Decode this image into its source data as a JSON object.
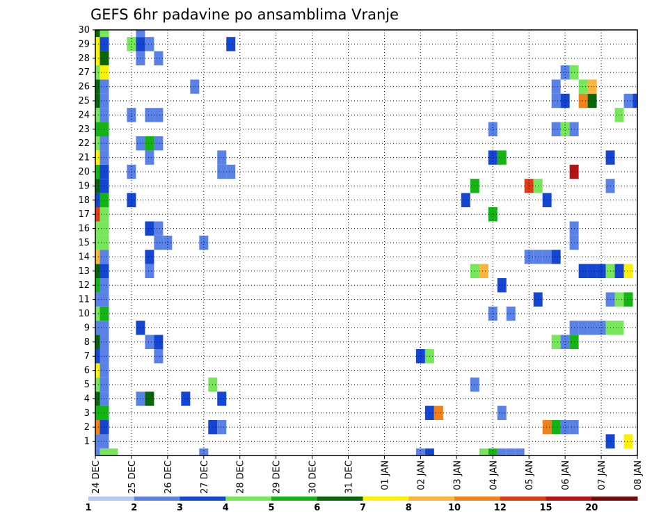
{
  "chart_data": {
    "type": "heatmap",
    "title": "GEFS 6hr padavine po ansamblima Vranje",
    "xlabel": "",
    "ylabel": "",
    "x_tick_labels": [
      "24 DEC",
      "25 DEC",
      "26 DEC",
      "27 DEC",
      "28 DEC",
      "29 DEC",
      "30 DEC",
      "31 DEC",
      "01 JAN",
      "02 JAN",
      "03 JAN",
      "04 JAN",
      "05 JAN",
      "06 JAN",
      "07 JAN",
      "08 JAN"
    ],
    "y_tick_labels": [
      "1",
      "2",
      "3",
      "4",
      "5",
      "6",
      "7",
      "8",
      "9",
      "10",
      "11",
      "12",
      "13",
      "14",
      "15",
      "16",
      "17",
      "18",
      "19",
      "20",
      "21",
      "22",
      "23",
      "24",
      "25",
      "26",
      "27",
      "28",
      "29",
      "30"
    ],
    "members": 31,
    "steps": 61,
    "step_hours": 6,
    "grid": true,
    "legend_position": "bottom",
    "legend": {
      "labels": [
        "1",
        "2",
        "3",
        "4",
        "5",
        "6",
        "7",
        "8",
        "10",
        "12",
        "15",
        "20"
      ],
      "colors": [
        "#b4c8f0",
        "#5a82e6",
        "#1446d2",
        "#78e65a",
        "#14b414",
        "#0a640a",
        "#faf00a",
        "#fab43c",
        "#f0821e",
        "#dc3c14",
        "#b41414",
        "#780a0a"
      ]
    },
    "cells": [
      [
        0,
        0,
        1
      ],
      [
        0,
        1,
        3
      ],
      [
        0,
        2,
        3
      ],
      [
        0,
        12,
        1
      ],
      [
        0,
        36,
        1
      ],
      [
        0,
        37,
        2
      ],
      [
        0,
        43,
        3
      ],
      [
        0,
        44,
        4
      ],
      [
        0,
        45,
        1
      ],
      [
        0,
        46,
        1
      ],
      [
        0,
        47,
        1
      ],
      [
        1,
        0,
        1
      ],
      [
        1,
        1,
        1
      ],
      [
        1,
        57,
        2
      ],
      [
        1,
        59,
        6
      ],
      [
        2,
        0,
        8
      ],
      [
        2,
        1,
        2
      ],
      [
        2,
        13,
        2
      ],
      [
        2,
        14,
        1
      ],
      [
        2,
        50,
        8
      ],
      [
        2,
        51,
        4
      ],
      [
        2,
        52,
        1
      ],
      [
        2,
        53,
        1
      ],
      [
        3,
        0,
        4
      ],
      [
        3,
        1,
        4
      ],
      [
        3,
        37,
        2
      ],
      [
        3,
        38,
        8
      ],
      [
        3,
        45,
        1
      ],
      [
        4,
        0,
        5
      ],
      [
        4,
        1,
        1
      ],
      [
        4,
        5,
        1
      ],
      [
        4,
        6,
        5
      ],
      [
        4,
        10,
        2
      ],
      [
        4,
        14,
        2
      ],
      [
        5,
        0,
        3
      ],
      [
        5,
        1,
        1
      ],
      [
        5,
        13,
        3
      ],
      [
        5,
        42,
        1
      ],
      [
        6,
        0,
        6
      ],
      [
        6,
        1,
        1
      ],
      [
        7,
        0,
        2
      ],
      [
        7,
        1,
        1
      ],
      [
        7,
        7,
        1
      ],
      [
        7,
        36,
        2
      ],
      [
        7,
        37,
        3
      ],
      [
        8,
        0,
        5
      ],
      [
        8,
        1,
        1
      ],
      [
        8,
        6,
        1
      ],
      [
        8,
        7,
        2
      ],
      [
        8,
        51,
        3
      ],
      [
        8,
        52,
        1
      ],
      [
        8,
        53,
        4
      ],
      [
        9,
        0,
        1
      ],
      [
        9,
        1,
        1
      ],
      [
        9,
        5,
        2
      ],
      [
        9,
        53,
        1
      ],
      [
        9,
        54,
        1
      ],
      [
        9,
        55,
        1
      ],
      [
        9,
        56,
        1
      ],
      [
        9,
        57,
        3
      ],
      [
        9,
        58,
        3
      ],
      [
        10,
        0,
        3
      ],
      [
        10,
        1,
        4
      ],
      [
        10,
        44,
        1
      ],
      [
        10,
        46,
        1
      ],
      [
        11,
        0,
        1
      ],
      [
        11,
        1,
        1
      ],
      [
        11,
        49,
        2
      ],
      [
        11,
        57,
        1
      ],
      [
        11,
        58,
        3
      ],
      [
        11,
        59,
        4
      ],
      [
        12,
        0,
        4
      ],
      [
        12,
        1,
        1
      ],
      [
        12,
        45,
        2
      ],
      [
        13,
        0,
        5
      ],
      [
        13,
        1,
        2
      ],
      [
        13,
        6,
        1
      ],
      [
        13,
        42,
        3
      ],
      [
        13,
        43,
        7
      ],
      [
        13,
        54,
        2
      ],
      [
        13,
        55,
        2
      ],
      [
        13,
        56,
        2
      ],
      [
        13,
        57,
        3
      ],
      [
        13,
        58,
        2
      ],
      [
        13,
        59,
        6
      ],
      [
        14,
        0,
        7
      ],
      [
        14,
        1,
        1
      ],
      [
        14,
        6,
        2
      ],
      [
        14,
        48,
        1
      ],
      [
        14,
        49,
        1
      ],
      [
        14,
        50,
        1
      ],
      [
        14,
        51,
        2
      ],
      [
        15,
        0,
        3
      ],
      [
        15,
        1,
        3
      ],
      [
        15,
        7,
        1
      ],
      [
        15,
        8,
        1
      ],
      [
        15,
        12,
        1
      ],
      [
        15,
        53,
        1
      ],
      [
        16,
        0,
        3
      ],
      [
        16,
        1,
        3
      ],
      [
        16,
        6,
        2
      ],
      [
        16,
        7,
        1
      ],
      [
        16,
        53,
        1
      ],
      [
        17,
        0,
        9
      ],
      [
        17,
        1,
        3
      ],
      [
        17,
        44,
        4
      ],
      [
        18,
        0,
        2
      ],
      [
        18,
        1,
        4
      ],
      [
        18,
        4,
        2
      ],
      [
        18,
        41,
        2
      ],
      [
        18,
        50,
        2
      ],
      [
        19,
        0,
        5
      ],
      [
        19,
        1,
        2
      ],
      [
        19,
        42,
        4
      ],
      [
        19,
        48,
        9
      ],
      [
        19,
        49,
        3
      ],
      [
        19,
        57,
        1
      ],
      [
        20,
        0,
        4
      ],
      [
        20,
        1,
        2
      ],
      [
        20,
        4,
        1
      ],
      [
        20,
        14,
        1
      ],
      [
        20,
        15,
        1
      ],
      [
        20,
        53,
        10
      ],
      [
        21,
        0,
        6
      ],
      [
        21,
        1,
        1
      ],
      [
        21,
        6,
        1
      ],
      [
        21,
        14,
        1
      ],
      [
        21,
        44,
        2
      ],
      [
        21,
        45,
        4
      ],
      [
        21,
        57,
        2
      ],
      [
        22,
        0,
        3
      ],
      [
        22,
        1,
        1
      ],
      [
        22,
        5,
        1
      ],
      [
        22,
        6,
        4
      ],
      [
        22,
        7,
        1
      ],
      [
        23,
        0,
        4
      ],
      [
        23,
        1,
        4
      ],
      [
        23,
        44,
        1
      ],
      [
        23,
        51,
        1
      ],
      [
        23,
        52,
        3
      ],
      [
        23,
        53,
        1
      ],
      [
        24,
        0,
        3
      ],
      [
        24,
        1,
        1
      ],
      [
        24,
        4,
        1
      ],
      [
        24,
        6,
        1
      ],
      [
        24,
        7,
        1
      ],
      [
        24,
        58,
        3
      ],
      [
        25,
        0,
        5
      ],
      [
        25,
        1,
        1
      ],
      [
        25,
        51,
        1
      ],
      [
        25,
        52,
        2
      ],
      [
        25,
        54,
        8
      ],
      [
        25,
        55,
        5
      ],
      [
        25,
        59,
        1
      ],
      [
        25,
        60,
        2
      ],
      [
        26,
        0,
        5
      ],
      [
        26,
        1,
        1
      ],
      [
        26,
        11,
        1
      ],
      [
        26,
        51,
        1
      ],
      [
        26,
        54,
        3
      ],
      [
        26,
        55,
        7
      ],
      [
        27,
        0,
        3
      ],
      [
        27,
        1,
        6
      ],
      [
        27,
        52,
        1
      ],
      [
        27,
        53,
        3
      ],
      [
        28,
        0,
        6
      ],
      [
        28,
        1,
        5
      ],
      [
        28,
        5,
        1
      ],
      [
        28,
        7,
        1
      ],
      [
        29,
        0,
        6
      ],
      [
        29,
        1,
        2
      ],
      [
        29,
        4,
        3
      ],
      [
        29,
        5,
        2
      ],
      [
        29,
        6,
        1
      ],
      [
        29,
        15,
        2
      ],
      [
        30,
        0,
        5
      ],
      [
        30,
        1,
        3
      ],
      [
        30,
        5,
        1
      ]
    ]
  }
}
